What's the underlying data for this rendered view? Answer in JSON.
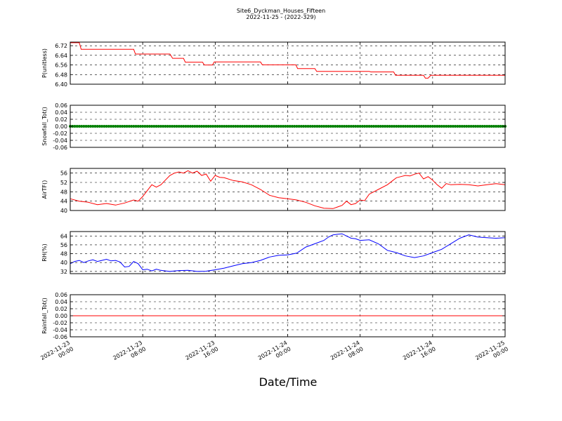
{
  "figure": {
    "title_line1": "Site6_Dyckman_Houses_Fifteen",
    "title_line2": "2022-11-25 - (2022-329)",
    "xlabel": "Date/Time",
    "x_ticks": [
      {
        "line1": "2022-11-23",
        "line2": "00:00"
      },
      {
        "line1": "2022-11-23",
        "line2": "08:00"
      },
      {
        "line1": "2022-11-23",
        "line2": "16:00"
      },
      {
        "line1": "2022-11-24",
        "line2": "00:00"
      },
      {
        "line1": "2022-11-24",
        "line2": "08:00"
      },
      {
        "line1": "2022-11-24",
        "line2": "16:00"
      },
      {
        "line1": "2022-11-25",
        "line2": "00:00"
      }
    ],
    "x_range_hours": [
      0,
      48
    ]
  },
  "chart_data": [
    {
      "type": "line",
      "ylabel": "P(unitless)",
      "ylim": [
        6.4,
        6.75
      ],
      "yticks": [
        6.4,
        6.48,
        6.56,
        6.64,
        6.72
      ],
      "tick_labels": [
        "6.40",
        "6.48",
        "6.56",
        "6.64",
        "6.72"
      ],
      "color": "#ff0000",
      "grid": true,
      "series": [
        {
          "x": [
            0,
            1.0,
            1.2,
            7.0,
            7.2,
            11.0,
            11.3,
            12.5,
            12.7,
            14.6,
            14.8,
            15.7,
            15.9,
            21.0,
            21.2,
            24.9,
            25.1,
            27.0,
            27.2,
            33.0,
            33.2,
            35.7,
            35.9,
            39.0,
            39.2,
            39.5,
            39.8,
            48
          ],
          "y": [
            6.745,
            6.745,
            6.69,
            6.69,
            6.651,
            6.651,
            6.615,
            6.615,
            6.583,
            6.583,
            6.56,
            6.56,
            6.585,
            6.585,
            6.561,
            6.561,
            6.53,
            6.53,
            6.506,
            6.506,
            6.502,
            6.502,
            6.474,
            6.474,
            6.45,
            6.45,
            6.474,
            6.474
          ]
        }
      ]
    },
    {
      "type": "scatter",
      "ylabel": "Snowfall_Tot()",
      "ylim": [
        -0.06,
        0.06
      ],
      "yticks": [
        -0.06,
        -0.04,
        -0.02,
        0.0,
        0.02,
        0.04,
        0.06
      ],
      "tick_labels": [
        "-0.06",
        "-0.04",
        "-0.02",
        "0.00",
        "0.02",
        "0.04",
        "0.06"
      ],
      "color": "#008000",
      "grid": true,
      "series": [
        {
          "x_start": 0,
          "x_end": 48,
          "interval_hours": 0.25,
          "constant_value": 0.0
        }
      ]
    },
    {
      "type": "line",
      "ylabel": "AirTF()",
      "ylim": [
        40,
        58
      ],
      "yticks": [
        40,
        44,
        48,
        52,
        56
      ],
      "tick_labels": [
        "40",
        "44",
        "48",
        "52",
        "56"
      ],
      "color": "#ff0000",
      "grid": true,
      "series": [
        {
          "x": [
            0,
            1,
            2,
            3,
            4,
            5,
            6,
            7,
            7.5,
            8,
            8.5,
            9,
            9.5,
            10,
            10.5,
            11,
            11.5,
            12,
            12.5,
            13,
            13.5,
            14,
            14.5,
            15,
            15.5,
            16,
            16.5,
            17,
            18,
            19,
            20,
            21,
            22,
            23,
            24,
            25,
            26,
            27,
            28,
            29,
            29.5,
            30,
            30.5,
            31,
            31.5,
            32,
            32.5,
            33,
            34,
            35,
            35.5,
            36,
            36.5,
            37,
            37.5,
            38,
            38.5,
            39,
            39.5,
            40,
            40.5,
            41,
            41.5,
            42,
            43,
            44,
            45,
            46,
            47,
            48
          ],
          "y": [
            45,
            44,
            43.5,
            42.5,
            43,
            42.3,
            43.2,
            44.5,
            44,
            46,
            48.5,
            51,
            50,
            51,
            53,
            55,
            56,
            56.5,
            56,
            57,
            56,
            56.8,
            55,
            55.6,
            52.5,
            55,
            54.2,
            54,
            52.8,
            52.2,
            51,
            49,
            46.5,
            45.5,
            45,
            44.5,
            43.5,
            42,
            41,
            40.8,
            41.5,
            42.2,
            44,
            42.5,
            43,
            44.5,
            44.2,
            47,
            49,
            51,
            52.5,
            54,
            54.5,
            55,
            54.8,
            55.5,
            56,
            53.5,
            54.5,
            53,
            51,
            49.5,
            51.5,
            51,
            51.2,
            51,
            50.5,
            51,
            51.5,
            51
          ]
        }
      ]
    },
    {
      "type": "line",
      "ylabel": "RH(%)",
      "ylim": [
        30,
        68
      ],
      "yticks": [
        32,
        40,
        48,
        56,
        64
      ],
      "tick_labels": [
        "32",
        "40",
        "48",
        "56",
        "64"
      ],
      "color": "#0000ff",
      "grid": true,
      "series": [
        {
          "x": [
            0,
            0.5,
            1,
            1.5,
            2,
            2.5,
            3,
            3.5,
            4,
            4.5,
            5,
            5.5,
            6,
            6.5,
            7,
            7.5,
            8,
            8.5,
            9,
            9.5,
            10,
            10.5,
            11,
            12,
            13,
            14,
            15,
            16,
            17,
            18,
            19,
            20,
            21,
            22,
            23,
            24,
            25,
            26,
            27,
            28,
            28.5,
            29,
            29.5,
            30,
            30.5,
            31,
            31.5,
            32,
            33,
            34,
            35,
            36,
            37,
            38,
            39,
            40,
            41,
            42,
            43,
            44,
            45,
            46,
            47,
            48
          ],
          "y": [
            39,
            41,
            42,
            40,
            41.5,
            42.5,
            41,
            42,
            43,
            41.5,
            42,
            40.5,
            36,
            36.5,
            41,
            39,
            33.5,
            34,
            32.5,
            34,
            33,
            32.5,
            32,
            32.8,
            33,
            32,
            32.2,
            33.5,
            35,
            37,
            39,
            40,
            42,
            45,
            46.5,
            47,
            48.5,
            54,
            57,
            60,
            63,
            65,
            65.5,
            66,
            64,
            62,
            61.5,
            60,
            60.5,
            57,
            51,
            49,
            46,
            44.5,
            46,
            49,
            52,
            57,
            62,
            65,
            63,
            62.5,
            62,
            62.5
          ]
        }
      ]
    },
    {
      "type": "line",
      "ylabel": "Rainfall_Tot()",
      "ylim": [
        -0.06,
        0.06
      ],
      "yticks": [
        -0.06,
        -0.04,
        -0.02,
        0.0,
        0.02,
        0.04,
        0.06
      ],
      "tick_labels": [
        "-0.06",
        "-0.04",
        "-0.02",
        "0.00",
        "0.02",
        "0.04",
        "0.06"
      ],
      "color": "#ff0000",
      "grid": true,
      "series": [
        {
          "x": [
            0,
            48
          ],
          "y": [
            0.0,
            0.0
          ]
        }
      ]
    }
  ]
}
